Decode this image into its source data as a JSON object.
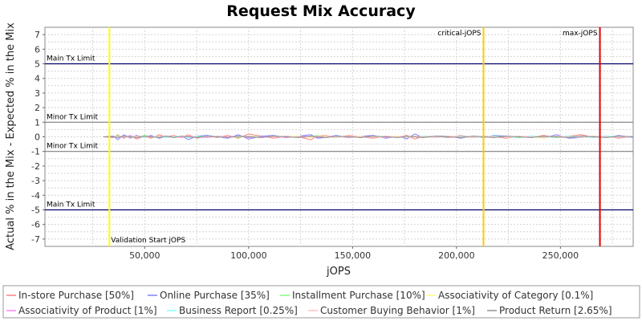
{
  "chart_data": {
    "type": "line",
    "title": "Request Mix Accuracy",
    "xlabel": "jOPS",
    "ylabel": "Actual % in the Mix - Expected % in the Mix",
    "xlim": [
      2000,
      285000
    ],
    "ylim": [
      -7.5,
      7.5
    ],
    "x_ticks": [
      50000,
      100000,
      150000,
      200000,
      250000
    ],
    "x_tick_labels": [
      "50,000",
      "100,000",
      "150,000",
      "200,000",
      "250,000"
    ],
    "y_ticks": [
      7,
      6,
      5,
      4,
      3,
      2,
      1,
      0,
      -1,
      -2,
      -3,
      -4,
      -5,
      -6,
      -7
    ],
    "grid": true,
    "legend_position": "bottom",
    "limit_lines": [
      {
        "label": "Main Tx Limit",
        "y": 5,
        "color": "#000066",
        "label_pos": "above"
      },
      {
        "label": "Minor Tx Limit",
        "y": 1,
        "color": "#808080",
        "label_pos": "above"
      },
      {
        "label": "Minor Tx Limit",
        "y": -1,
        "color": "#808080",
        "label_pos": "above"
      },
      {
        "label": "Main Tx Limit",
        "y": -5,
        "color": "#000066",
        "label_pos": "above"
      }
    ],
    "markers": [
      {
        "label": "Validation Start jOPS",
        "x": 33000,
        "color": "#ffff00",
        "label_pos": "bottom"
      },
      {
        "label": "critical-jOPS",
        "x": 213000,
        "color": "#ffcc00",
        "label_pos": "top"
      },
      {
        "label": "max-jOPS",
        "x": 269000,
        "color": "#e00000",
        "label_pos": "top"
      }
    ],
    "x": [
      30000,
      35000,
      37000,
      40000,
      43000,
      46000,
      50000,
      53000,
      57000,
      60000,
      64000,
      68000,
      71000,
      75000,
      80000,
      85000,
      90000,
      95000,
      100000,
      106000,
      112000,
      118000,
      124000,
      130000,
      133000,
      137000,
      142000,
      148000,
      154000,
      160000,
      166000,
      172000,
      176000,
      180000,
      184000,
      190000,
      196000,
      202000,
      208000,
      213000,
      218000,
      224000,
      230000,
      236000,
      242000,
      248000,
      254000,
      260000,
      266000,
      272000,
      278000,
      285000
    ],
    "series": [
      {
        "name": "In-store Purchase [50%]",
        "color": "#ff8080",
        "values": [
          0,
          -0.05,
          0.15,
          -0.1,
          0.1,
          -0.15,
          0.05,
          -0.1,
          0.15,
          0,
          0.1,
          -0.05,
          0.15,
          -0.1,
          0.05,
          -0.05,
          0.1,
          -0.1,
          0.2,
          0.05,
          -0.1,
          0.05,
          0,
          -0.2,
          0.05,
          0.1,
          -0.05,
          0.1,
          0,
          -0.1,
          0.05,
          -0.05,
          0.1,
          -0.15,
          0.05,
          0,
          -0.05,
          0.1,
          -0.05,
          0.05,
          0,
          -0.1,
          0.05,
          -0.05,
          0.1,
          -0.05,
          0.05,
          0.15,
          -0.05,
          0.05,
          -0.1,
          0.05
        ]
      },
      {
        "name": "Online Purchase [35%]",
        "color": "#8080ff",
        "values": [
          0,
          0.05,
          -0.2,
          0.15,
          -0.1,
          0.1,
          -0.05,
          0.1,
          -0.1,
          0.05,
          -0.05,
          0.05,
          -0.2,
          0.05,
          0.1,
          0,
          -0.1,
          0.15,
          -0.15,
          0.05,
          0.1,
          -0.05,
          0.05,
          0.15,
          -0.1,
          -0.05,
          0.1,
          -0.05,
          0.05,
          0.1,
          -0.1,
          0.05,
          -0.15,
          0.2,
          -0.05,
          0.05,
          0.05,
          -0.1,
          0.05,
          -0.05,
          0.1,
          0.05,
          -0.05,
          0.05,
          -0.1,
          0.15,
          -0.1,
          -0.05,
          0.05,
          -0.05,
          0.1,
          -0.05
        ]
      },
      {
        "name": "Installment Purchase [10%]",
        "color": "#80ff80",
        "values": [
          0,
          0,
          0.1,
          -0.05,
          0.05,
          -0.05,
          0.1,
          0,
          -0.05,
          0.05,
          0,
          0.05,
          -0.05,
          0.05,
          -0.05,
          0.05,
          0,
          -0.05,
          0.05,
          0,
          0.05,
          -0.05,
          0.05,
          0,
          0.1,
          -0.05,
          0,
          0.05,
          -0.05,
          0.05,
          0,
          -0.05,
          0.05,
          0,
          -0.05,
          0.05,
          0,
          0.05,
          -0.05,
          0,
          0.05,
          0,
          -0.05,
          0.05,
          0,
          -0.05,
          0.05,
          0,
          0.05,
          -0.05,
          0,
          0.05
        ]
      },
      {
        "name": "Associativity of Category [0.1%]",
        "color": "#ffff80",
        "values": [
          0,
          0,
          -0.05,
          0.05,
          0,
          -0.05,
          0.05,
          0,
          0.05,
          -0.05,
          0,
          0.05,
          0,
          -0.05,
          0.05,
          0,
          -0.05,
          0.05,
          0,
          -0.05,
          0.05,
          0,
          0.05,
          -0.05,
          0,
          0.05,
          0,
          -0.05,
          0.05,
          0,
          -0.05,
          0.05,
          0,
          0.05,
          -0.05,
          0,
          0.05,
          -0.05,
          0,
          0.05,
          -0.05,
          0,
          0.05,
          0,
          -0.1,
          0.05,
          0,
          0.05,
          -0.05,
          0,
          0.05,
          0
        ]
      },
      {
        "name": "Associativity of Product [1%]",
        "color": "#ff80ff",
        "values": [
          0,
          0,
          0.05,
          -0.05,
          0.1,
          -0.05,
          0,
          0.05,
          -0.05,
          0.05,
          0,
          -0.05,
          0.05,
          0,
          -0.05,
          0.05,
          0,
          0.05,
          -0.05,
          0,
          0.05,
          -0.05,
          0,
          0.05,
          -0.05,
          0,
          0.05,
          -0.05,
          0,
          0.05,
          -0.05,
          0,
          0.05,
          0,
          -0.05,
          0.05,
          0,
          -0.05,
          0.05,
          0,
          -0.05,
          0.05,
          0,
          -0.05,
          0.05,
          0,
          -0.05,
          0.05,
          0,
          0.05,
          -0.05,
          0
        ]
      },
      {
        "name": "Business Report [0.25%]",
        "color": "#80ffff",
        "values": [
          0,
          0,
          -0.05,
          0.05,
          0,
          0.05,
          -0.05,
          0,
          0.05,
          -0.05,
          0,
          0.05,
          -0.05,
          0,
          0.05,
          0,
          -0.05,
          0.05,
          0,
          -0.05,
          0.05,
          0,
          -0.05,
          0.05,
          0,
          -0.05,
          0.05,
          0,
          -0.05,
          0.05,
          0,
          -0.05,
          0.05,
          0,
          0.05,
          -0.05,
          0,
          0.05,
          -0.05,
          0,
          0.05,
          -0.05,
          0,
          0.05,
          -0.05,
          0,
          0.05,
          0,
          -0.05,
          0.05,
          0,
          0
        ]
      },
      {
        "name": "Customer Buying Behavior [1%]",
        "color": "#ffc0c0",
        "values": [
          0,
          0,
          0.05,
          0,
          -0.05,
          0.05,
          0,
          -0.05,
          0.05,
          0.05,
          -0.05,
          0,
          0.05,
          -0.05,
          0,
          0.05,
          -0.05,
          0,
          0.05,
          -0.05,
          0,
          0.05,
          -0.05,
          0,
          0.05,
          0,
          -0.05,
          0.05,
          0,
          -0.05,
          0.05,
          0,
          -0.05,
          0.05,
          0,
          -0.05,
          0.05,
          0,
          -0.05,
          0.05,
          0,
          -0.05,
          0.05,
          0,
          -0.05,
          0.05,
          0,
          -0.05,
          0.05,
          0,
          -0.05,
          0.05
        ]
      },
      {
        "name": "Product Return [2.65%]",
        "color": "#909090",
        "values": [
          0,
          0,
          -0.05,
          0.05,
          0,
          -0.05,
          0.05,
          0,
          -0.05,
          0.05,
          -0.05,
          0.05,
          0,
          -0.05,
          0.05,
          0,
          -0.05,
          0.05,
          0,
          -0.05,
          0.05,
          0,
          -0.05,
          0.05,
          0,
          -0.05,
          0.05,
          0,
          -0.05,
          0.05,
          0,
          -0.05,
          0.05,
          0,
          -0.05,
          0.05,
          0,
          -0.05,
          0.05,
          0,
          -0.05,
          0.05,
          0,
          -0.05,
          0.05,
          0,
          -0.05,
          0.05,
          0,
          -0.05,
          0.05,
          0
        ]
      }
    ]
  }
}
